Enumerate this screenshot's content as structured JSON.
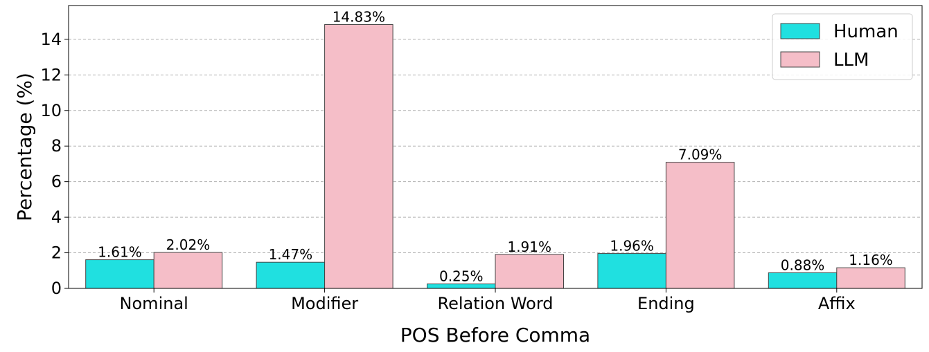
{
  "chart_data": {
    "type": "bar",
    "xlabel": "POS Before Comma",
    "ylabel": "Percentage (%)",
    "categories": [
      "Nominal",
      "Modifier",
      "Relation Word",
      "Ending",
      "Affix"
    ],
    "series": [
      {
        "name": "Human",
        "color": "#20e0e0",
        "values": [
          1.61,
          1.47,
          0.25,
          1.96,
          0.88
        ],
        "labels": [
          "1.61%",
          "1.47%",
          "0.25%",
          "1.96%",
          "0.88%"
        ]
      },
      {
        "name": "LLM",
        "color": "#f5bec8",
        "values": [
          2.02,
          14.83,
          1.91,
          7.09,
          1.16
        ],
        "labels": [
          "2.02%",
          "14.83%",
          "1.91%",
          "7.09%",
          "1.16%"
        ]
      }
    ],
    "ylim": [
      0,
      15.9
    ],
    "yticks": [
      0,
      2,
      4,
      6,
      8,
      10,
      12,
      14
    ],
    "grid": "y-dashed",
    "legend_position": "top-right"
  }
}
